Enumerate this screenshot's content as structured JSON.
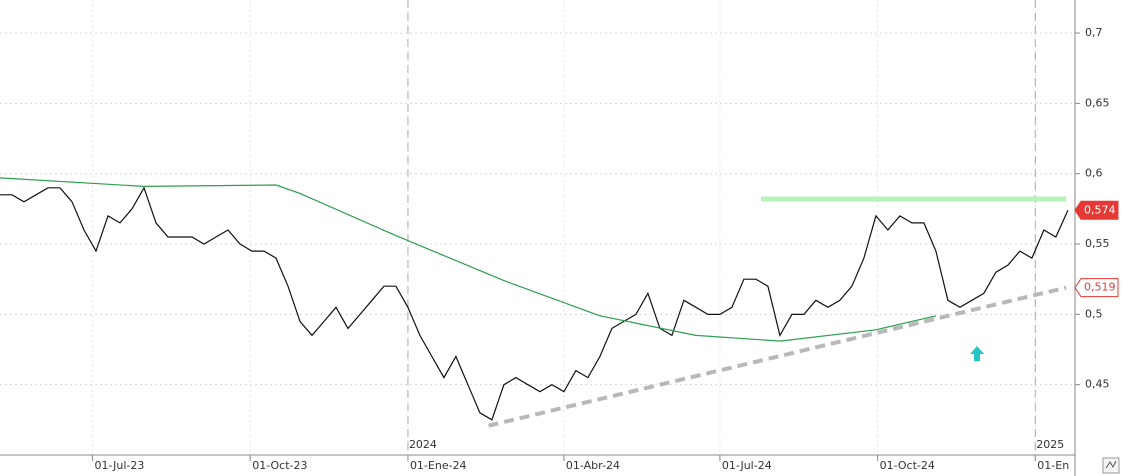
{
  "chart_data": {
    "type": "line",
    "xlim": [
      "2023-05-08",
      "2025-01-23"
    ],
    "ylim": [
      0.4,
      0.7235
    ],
    "yticks": [
      {
        "value": 0.45,
        "label": "0,45"
      },
      {
        "value": 0.5,
        "label": "0,5"
      },
      {
        "value": 0.55,
        "label": "0,55"
      },
      {
        "value": 0.6,
        "label": "0,6"
      },
      {
        "value": 0.65,
        "label": "0,65"
      },
      {
        "value": 0.7,
        "label": "0,7"
      }
    ],
    "xticks": [
      {
        "value": "2023-07-01",
        "label": "01-Jul-23"
      },
      {
        "value": "2023-10-01",
        "label": "01-Oct-23"
      },
      {
        "value": "2024-01-01",
        "label": "01-Ene-24"
      },
      {
        "value": "2024-04-01",
        "label": "01-Abr-24"
      },
      {
        "value": "2024-07-01",
        "label": "01-Jul-24"
      },
      {
        "value": "2024-10-01",
        "label": "01-Oct-24"
      },
      {
        "value": "2025-01-01",
        "label": "01-En"
      }
    ],
    "year_lines": [
      {
        "value": "2024-01-01",
        "label": "2024"
      },
      {
        "value": "2025-01-01",
        "label": "2025"
      }
    ],
    "grid": true,
    "series": [
      {
        "color": "#111111",
        "style": "solid",
        "x": [
          "2023-05-08",
          "2023-05-15",
          "2023-05-22",
          "2023-05-29",
          "2023-06-05",
          "2023-06-12",
          "2023-06-19",
          "2023-06-26",
          "2023-07-03",
          "2023-07-10",
          "2023-07-17",
          "2023-07-24",
          "2023-07-31",
          "2023-08-07",
          "2023-08-14",
          "2023-08-21",
          "2023-08-28",
          "2023-09-04",
          "2023-09-11",
          "2023-09-18",
          "2023-09-25",
          "2023-10-02",
          "2023-10-09",
          "2023-10-16",
          "2023-10-23",
          "2023-10-30",
          "2023-11-06",
          "2023-11-13",
          "2023-11-20",
          "2023-11-27",
          "2023-12-04",
          "2023-12-11",
          "2023-12-18",
          "2023-12-25",
          "2024-01-01",
          "2024-01-08",
          "2024-01-15",
          "2024-01-22",
          "2024-01-29",
          "2024-02-05",
          "2024-02-12",
          "2024-02-19",
          "2024-02-26",
          "2024-03-04",
          "2024-03-11",
          "2024-03-18",
          "2024-03-25",
          "2024-04-01",
          "2024-04-08",
          "2024-04-15",
          "2024-04-22",
          "2024-04-29",
          "2024-05-06",
          "2024-05-13",
          "2024-05-20",
          "2024-05-27",
          "2024-06-03",
          "2024-06-10",
          "2024-06-17",
          "2024-06-24",
          "2024-07-01",
          "2024-07-08",
          "2024-07-15",
          "2024-07-22",
          "2024-07-29",
          "2024-08-05",
          "2024-08-12",
          "2024-08-19",
          "2024-08-26",
          "2024-09-02",
          "2024-09-09",
          "2024-09-16",
          "2024-09-23",
          "2024-09-30",
          "2024-10-07",
          "2024-10-14",
          "2024-10-21",
          "2024-10-28",
          "2024-11-04",
          "2024-11-11",
          "2024-11-18",
          "2024-11-25",
          "2024-12-02",
          "2024-12-09",
          "2024-12-16",
          "2024-12-23",
          "2024-12-30",
          "2025-01-06",
          "2025-01-13",
          "2025-01-20"
        ],
        "values": [
          0.585,
          0.585,
          0.58,
          0.585,
          0.59,
          0.59,
          0.58,
          0.56,
          0.545,
          0.57,
          0.565,
          0.575,
          0.59,
          0.565,
          0.555,
          0.555,
          0.555,
          0.55,
          0.555,
          0.56,
          0.55,
          0.545,
          0.545,
          0.54,
          0.52,
          0.495,
          0.485,
          0.495,
          0.505,
          0.49,
          0.5,
          0.51,
          0.52,
          0.52,
          0.505,
          0.485,
          0.47,
          0.455,
          0.47,
          0.45,
          0.43,
          0.425,
          0.45,
          0.455,
          0.45,
          0.445,
          0.45,
          0.445,
          0.46,
          0.455,
          0.47,
          0.49,
          0.495,
          0.5,
          0.515,
          0.49,
          0.485,
          0.51,
          0.505,
          0.5,
          0.5,
          0.505,
          0.525,
          0.525,
          0.52,
          0.485,
          0.5,
          0.5,
          0.51,
          0.505,
          0.51,
          0.52,
          0.54,
          0.57,
          0.56,
          0.57,
          0.565,
          0.565,
          0.545,
          0.51,
          0.505,
          0.51,
          0.515,
          0.53,
          0.535,
          0.545,
          0.54,
          0.56,
          0.555,
          0.574
        ]
      },
      {
        "color": "#2e9e4f",
        "style": "solid",
        "x": [
          "2023-05-08",
          "2023-07-31",
          "2023-10-16",
          "2023-10-30",
          "2023-12-25",
          "2024-02-26",
          "2024-04-22",
          "2024-06-17",
          "2024-08-05",
          "2024-09-30",
          "2024-11-04"
        ],
        "values": [
          0.597,
          0.591,
          0.592,
          0.586,
          0.556,
          0.524,
          0.499,
          0.485,
          0.481,
          0.489,
          0.499
        ]
      },
      {
        "color": "#b8b8b8",
        "style": "dashed",
        "x": [
          "2024-02-17",
          "2025-01-19"
        ],
        "values": [
          0.4208,
          0.519
        ]
      },
      {
        "color": "#b9f2b9",
        "style": "band",
        "x": [
          "2024-07-25",
          "2025-01-19"
        ],
        "values": [
          0.582,
          0.582
        ]
      }
    ],
    "markers": [
      {
        "value": 0.574,
        "label": "0,574",
        "fill": "#e53935"
      },
      {
        "value": 0.519,
        "label": "0,519",
        "fill": "#ffffff"
      }
    ]
  }
}
